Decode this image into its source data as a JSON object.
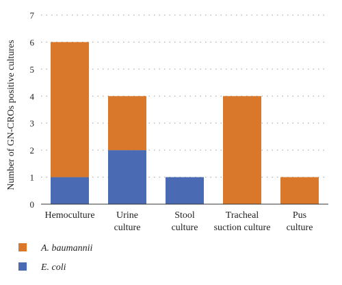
{
  "chart_data": {
    "type": "bar",
    "stacked": true,
    "categories": [
      [
        "Hemoculture"
      ],
      [
        "Urine",
        "culture"
      ],
      [
        "Stool",
        "culture"
      ],
      [
        "Tracheal",
        "suction culture"
      ],
      [
        "Pus",
        "culture"
      ]
    ],
    "series": [
      {
        "name": "E. coli",
        "values": [
          1,
          2,
          1,
          0,
          0
        ],
        "color": "#4a6ab3"
      },
      {
        "name": "A. baumannii",
        "values": [
          5,
          2,
          0,
          4,
          1
        ],
        "color": "#d9782b"
      }
    ],
    "ylabel": "Number of GN-CROs positive cultures",
    "ylim": [
      0,
      7
    ],
    "yticks": [
      0,
      1,
      2,
      3,
      4,
      5,
      6,
      7
    ],
    "grid": "horizontal dotted",
    "legend_position": "bottom-left",
    "legend_order": [
      "A. baumannii",
      "E. coli"
    ]
  }
}
